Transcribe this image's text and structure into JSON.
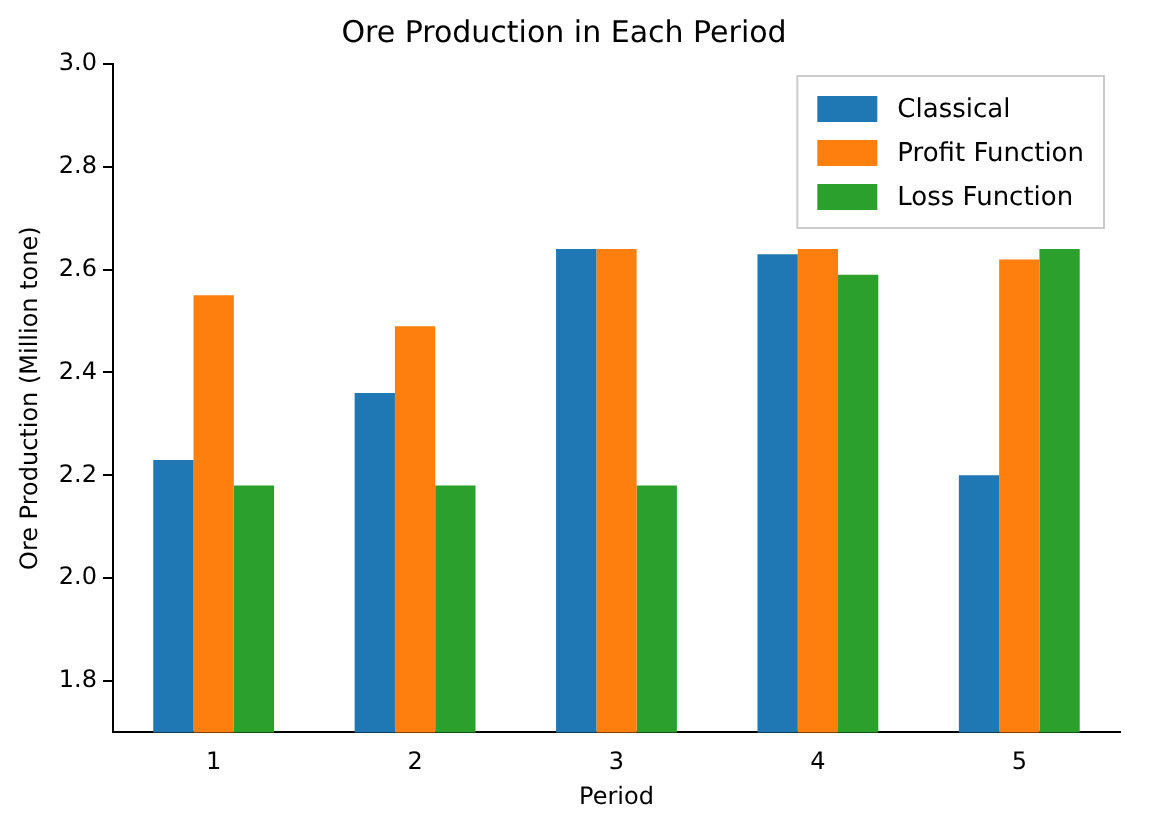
{
  "chart_data": {
    "type": "bar",
    "title": "Ore Production in Each Period",
    "xlabel": "Period",
    "ylabel": "Ore Production (Million tone)",
    "categories": [
      "1",
      "2",
      "3",
      "4",
      "5"
    ],
    "series": [
      {
        "name": "Classical",
        "color": "#1f77b4",
        "values": [
          2.23,
          2.36,
          2.64,
          2.63,
          2.2
        ]
      },
      {
        "name": "Profit Function",
        "color": "#ff7f0e",
        "values": [
          2.55,
          2.49,
          2.64,
          2.64,
          2.62
        ]
      },
      {
        "name": "Loss Function",
        "color": "#2ca02c",
        "values": [
          2.18,
          2.18,
          2.18,
          2.59,
          2.64
        ]
      }
    ],
    "ylim": [
      1.7,
      3.0
    ],
    "yticks": [
      1.8,
      {
        "value": 2,
        "label": "2.0"
      },
      2.2,
      2.4,
      2.6,
      2.8,
      {
        "value": 3,
        "label": "3.0"
      }
    ],
    "grid": false,
    "legend": "top right"
  }
}
